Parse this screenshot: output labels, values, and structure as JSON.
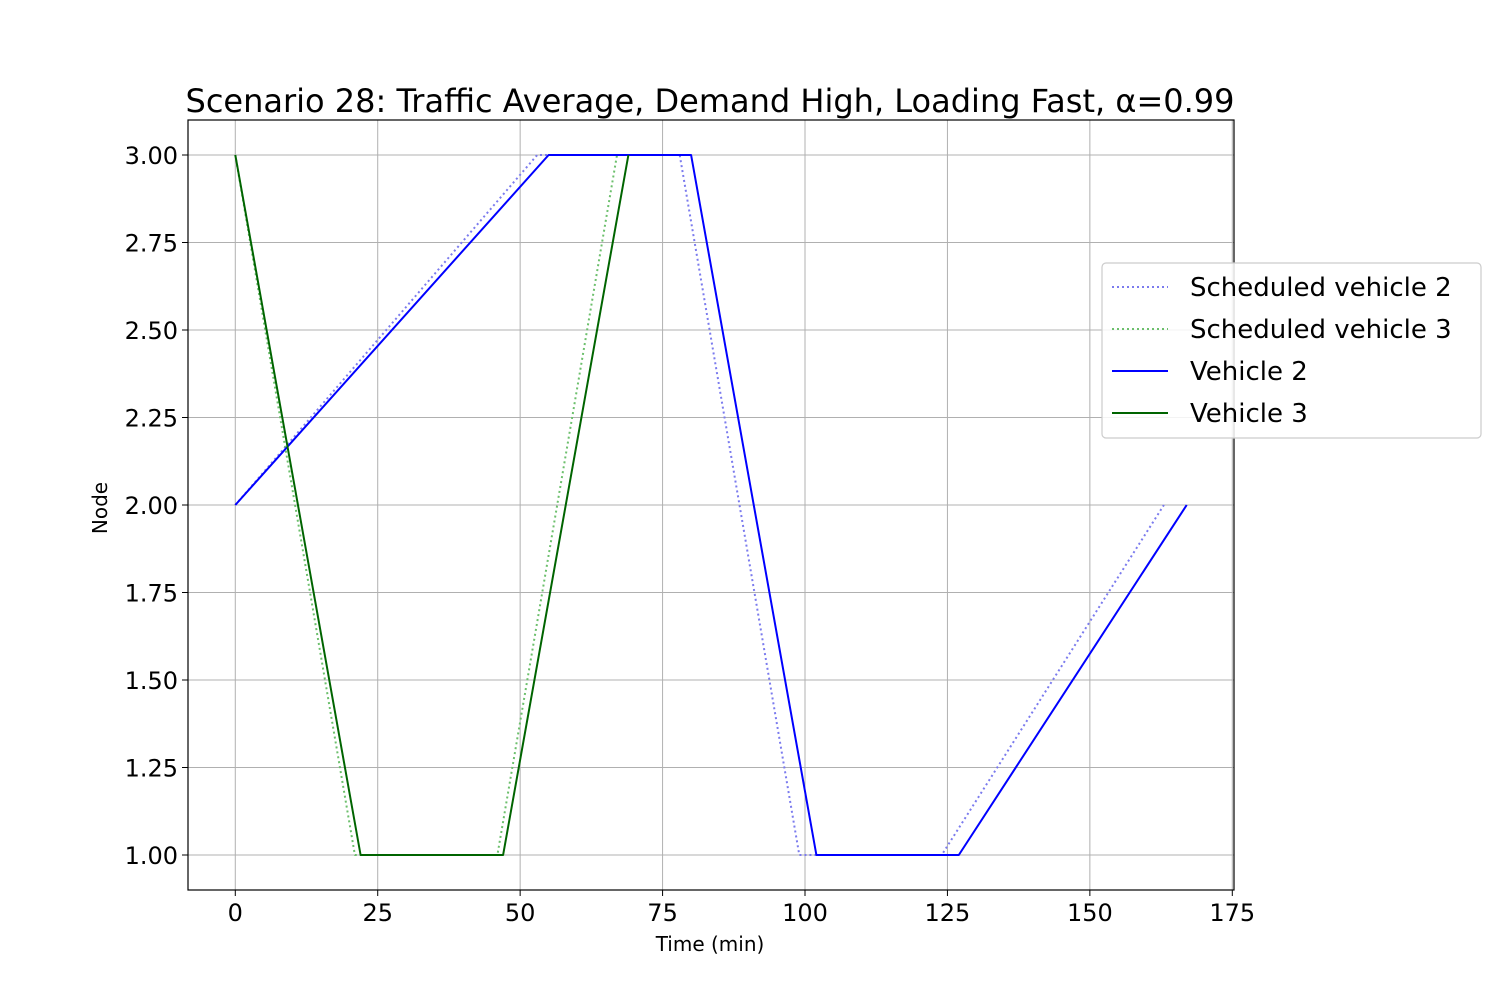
{
  "chart_data": {
    "type": "line",
    "title": "Scenario 28: Traffic Average, Demand High, Loading Fast, α=0.99",
    "xlabel": "Time (min)",
    "ylabel": "Node",
    "xlim": [
      -8.3,
      175.3
    ],
    "ylim": [
      0.9,
      3.1
    ],
    "xticks": [
      0,
      25,
      50,
      75,
      100,
      125,
      150,
      175
    ],
    "xtick_labels": [
      "0",
      "25",
      "50",
      "75",
      "100",
      "125",
      "150",
      "175"
    ],
    "yticks": [
      1.0,
      1.25,
      1.5,
      1.75,
      2.0,
      2.25,
      2.5,
      2.75,
      3.0
    ],
    "ytick_labels": [
      "1.00",
      "1.25",
      "1.50",
      "1.75",
      "2.00",
      "2.25",
      "2.50",
      "2.75",
      "3.00"
    ],
    "grid": true,
    "legend_position": "right, outside axes",
    "series": [
      {
        "name": "Scheduled vehicle 2",
        "style": "dotted",
        "color": "#7b7bee",
        "x": [
          0,
          53,
          78,
          99,
          124,
          163
        ],
        "y": [
          2,
          3,
          3,
          1,
          1,
          2
        ]
      },
      {
        "name": "Scheduled vehicle 3",
        "style": "dotted",
        "color": "#6cbf6c",
        "x": [
          0,
          21,
          46,
          67
        ],
        "y": [
          3,
          1,
          1,
          3
        ]
      },
      {
        "name": "Vehicle 2",
        "style": "solid",
        "color": "#0000ff",
        "x": [
          0,
          55,
          80,
          102,
          127,
          167
        ],
        "y": [
          2,
          3,
          3,
          1,
          1,
          2
        ]
      },
      {
        "name": "Vehicle 3",
        "style": "solid",
        "color": "#006400",
        "x": [
          0,
          22,
          47,
          69
        ],
        "y": [
          3,
          1,
          1,
          3
        ]
      }
    ]
  }
}
